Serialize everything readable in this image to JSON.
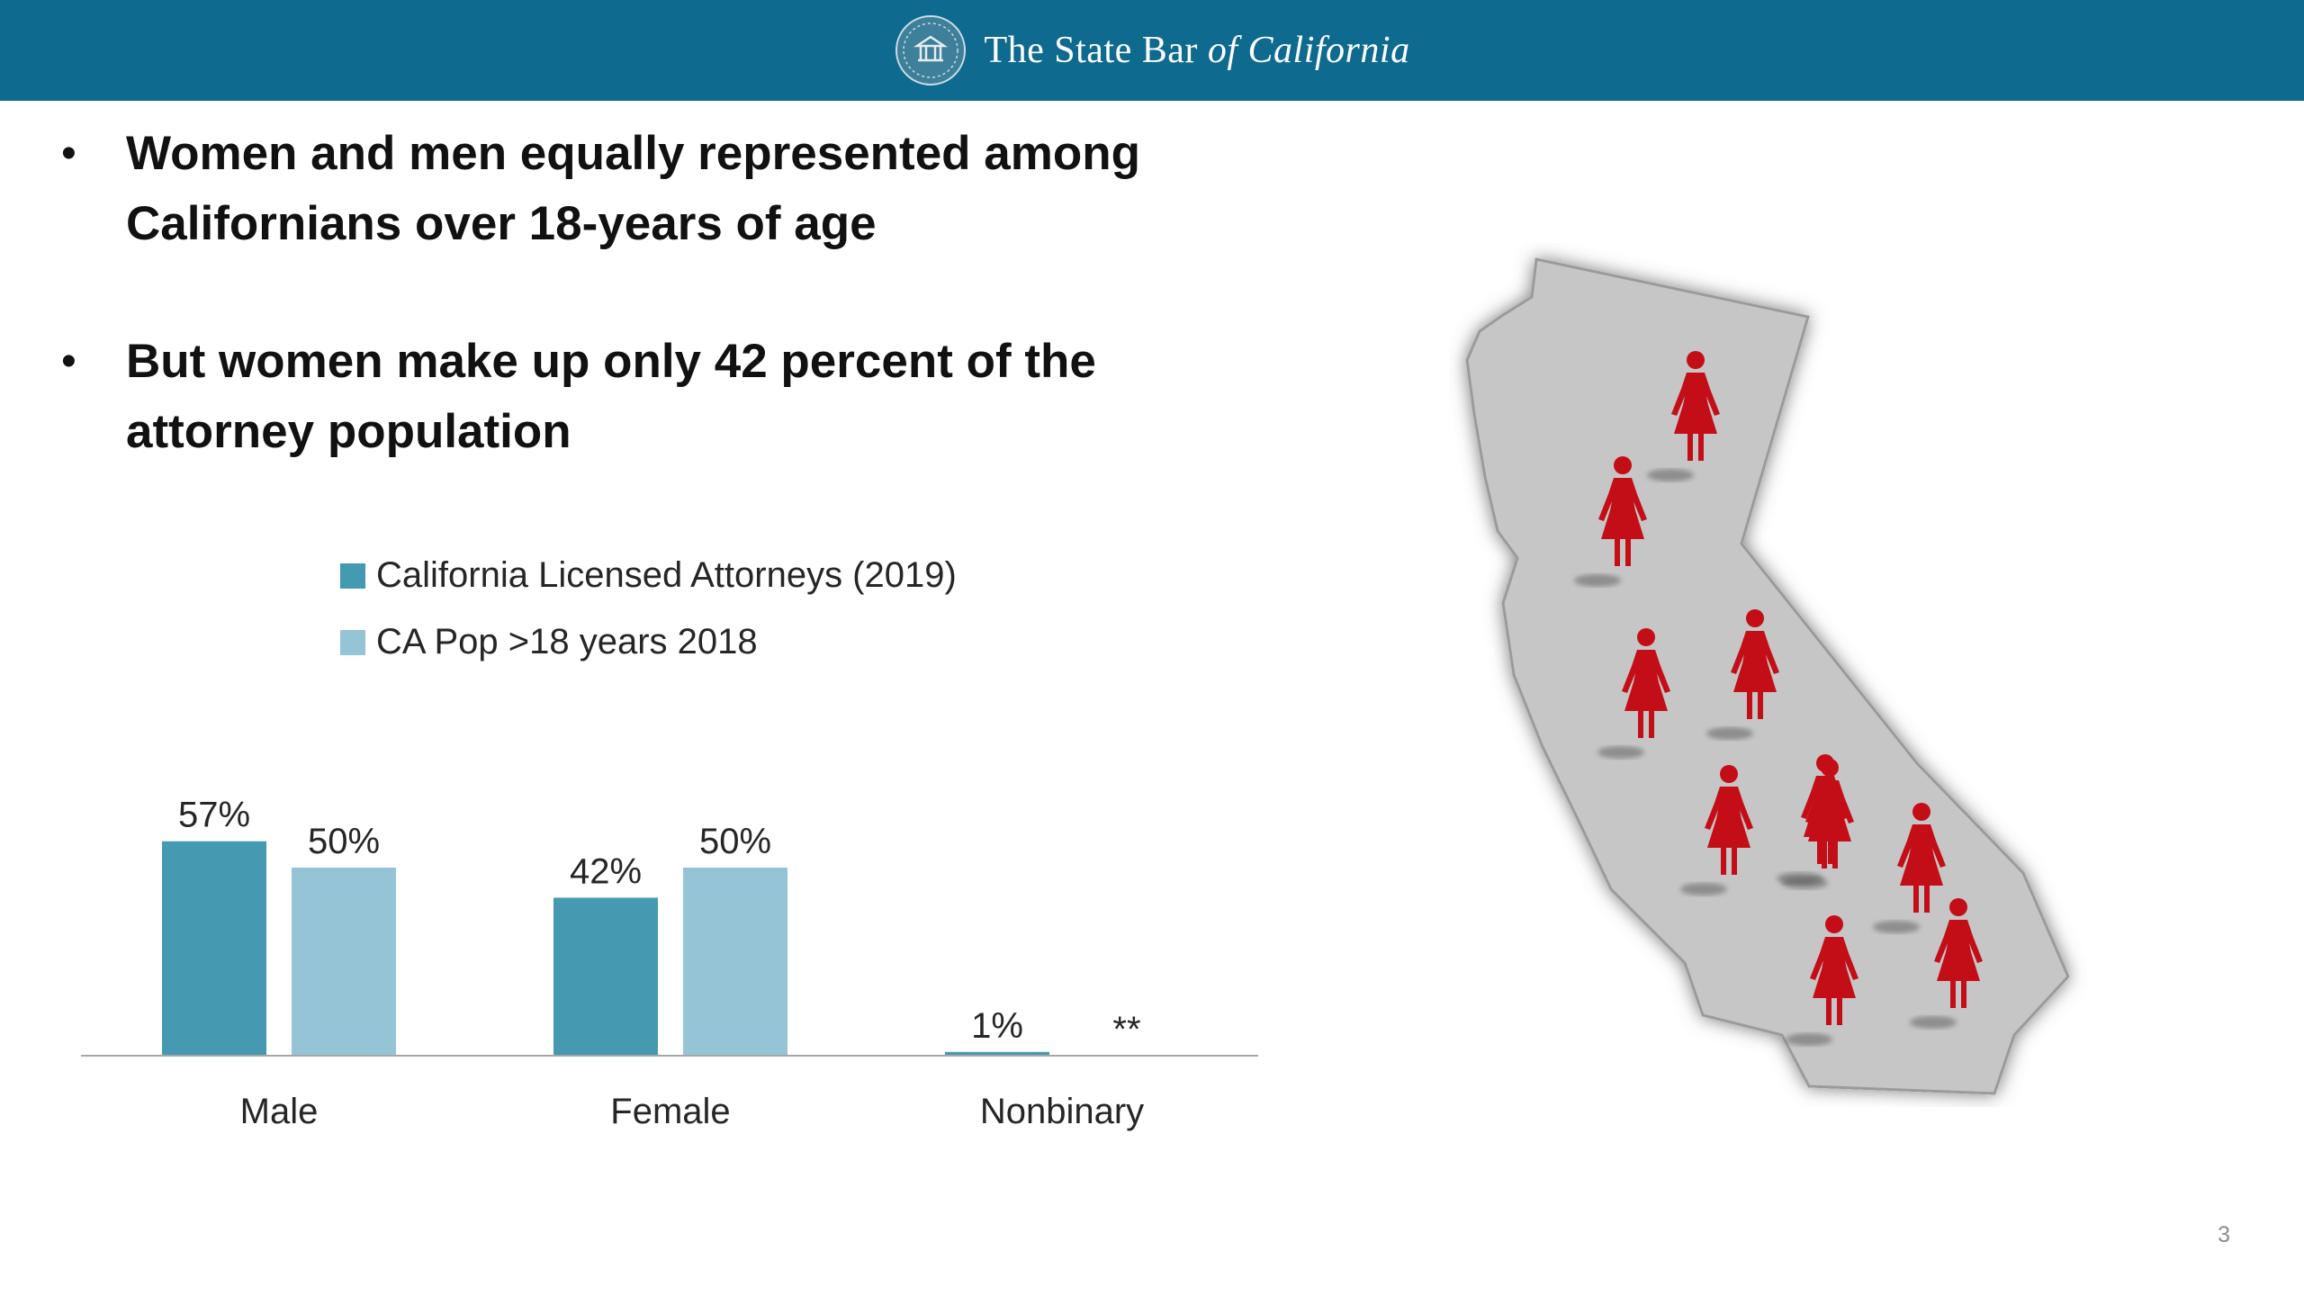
{
  "header": {
    "brand_plain": "The State Bar ",
    "brand_italic": "of California",
    "seal_icon": "state-bar-seal",
    "background_color": "#0e6a8e"
  },
  "bullets": [
    {
      "text": "Women and men equally represented among Californians over 18-years of age"
    },
    {
      "text": "But women make up only 42 percent of the attorney population"
    }
  ],
  "bullet_glyph": "•",
  "chart_data": {
    "type": "bar",
    "categories": [
      "Male",
      "Female",
      "Nonbinary"
    ],
    "series": [
      {
        "name": "California Licensed Attorneys (2019)",
        "values": [
          57,
          42,
          1
        ],
        "labels": [
          "57%",
          "42%",
          "1%"
        ],
        "color": "#4599b1"
      },
      {
        "name": "CA Pop >18 years 2018",
        "values": [
          50,
          50,
          null
        ],
        "labels": [
          "50%",
          "50%",
          "**"
        ],
        "color": "#95c4d6"
      }
    ],
    "legend_position": "top",
    "grid": false,
    "ylim": [
      0,
      60
    ]
  },
  "map": {
    "region": "California",
    "shape_color": "#c6c6c6",
    "figure_icon": "woman-figure-icon",
    "figure_color": "#c40e17",
    "figure_count": 10
  },
  "page_number": "3"
}
